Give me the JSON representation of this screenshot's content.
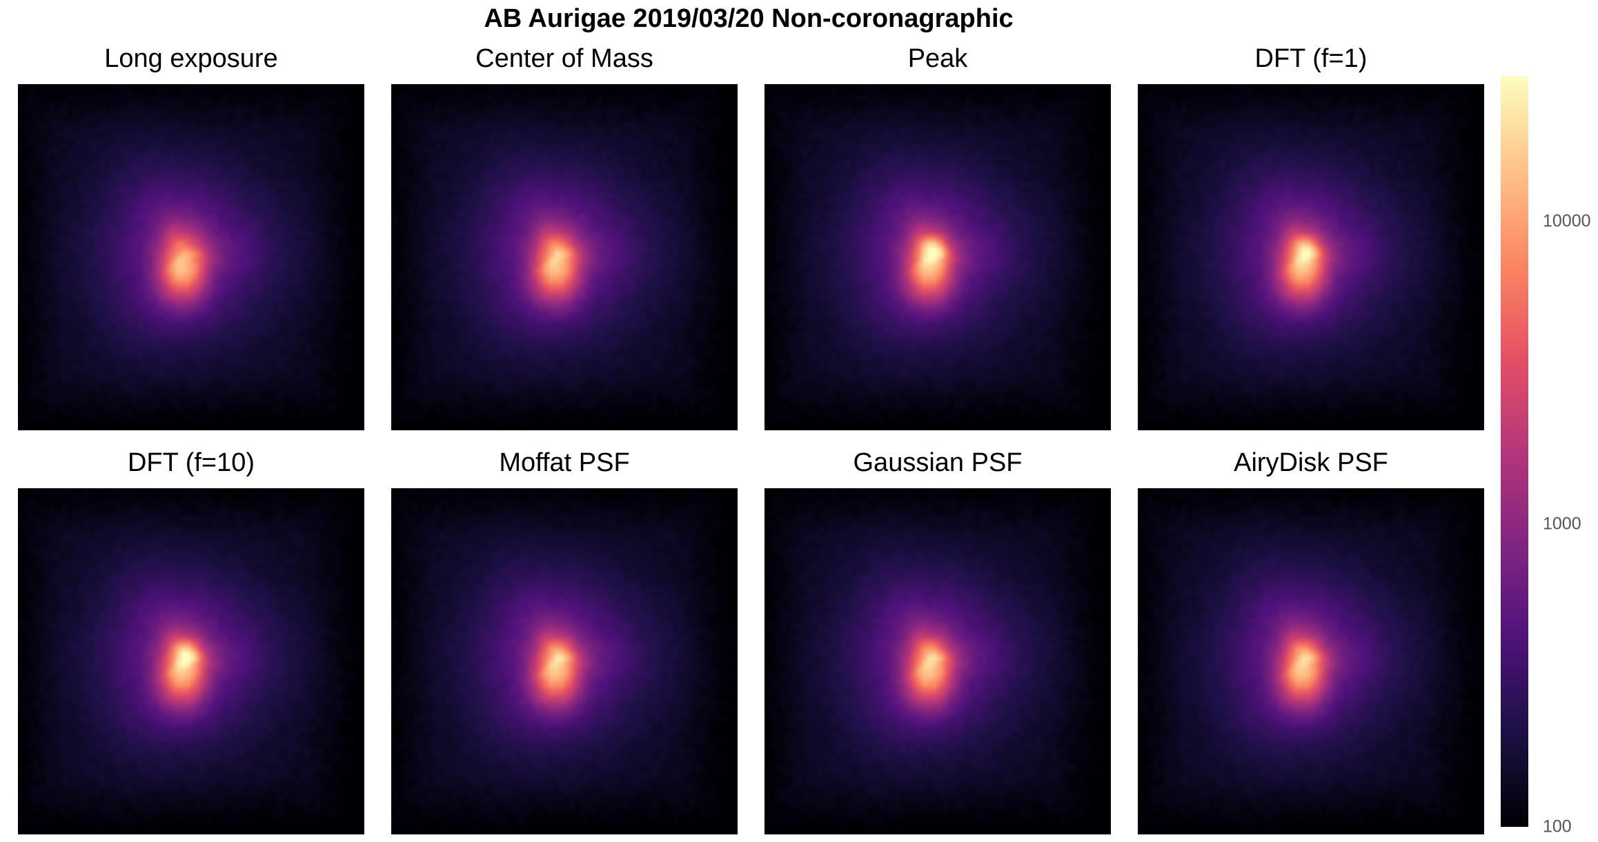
{
  "figure": {
    "suptitle": "AB Aurigae 2019/03/20 Non-coronagraphic"
  },
  "chart_data": {
    "type": "heatmap",
    "title": "AB Aurigae 2019/03/20 Non-coronagraphic",
    "panels": [
      {
        "title": "Long exposure"
      },
      {
        "title": "Center of Mass"
      },
      {
        "title": "Peak"
      },
      {
        "title": "DFT (f=1)"
      },
      {
        "title": "DFT (f=10)"
      },
      {
        "title": "Moffat PSF"
      },
      {
        "title": "Gaussian PSF"
      },
      {
        "title": "AiryDisk PSF"
      }
    ],
    "colorbar": {
      "scale": "log",
      "range": [
        100,
        30000
      ],
      "ticks": [
        100,
        1000,
        10000
      ],
      "tick_labels": [
        "100",
        "1000",
        "10000"
      ],
      "colormap": "magma"
    }
  },
  "colors": {
    "cmap_stops": [
      "#000004",
      "#1c1044",
      "#4f127b",
      "#812581",
      "#b5367a",
      "#e55064",
      "#fb8761",
      "#fec287",
      "#fcfdbf"
    ]
  }
}
